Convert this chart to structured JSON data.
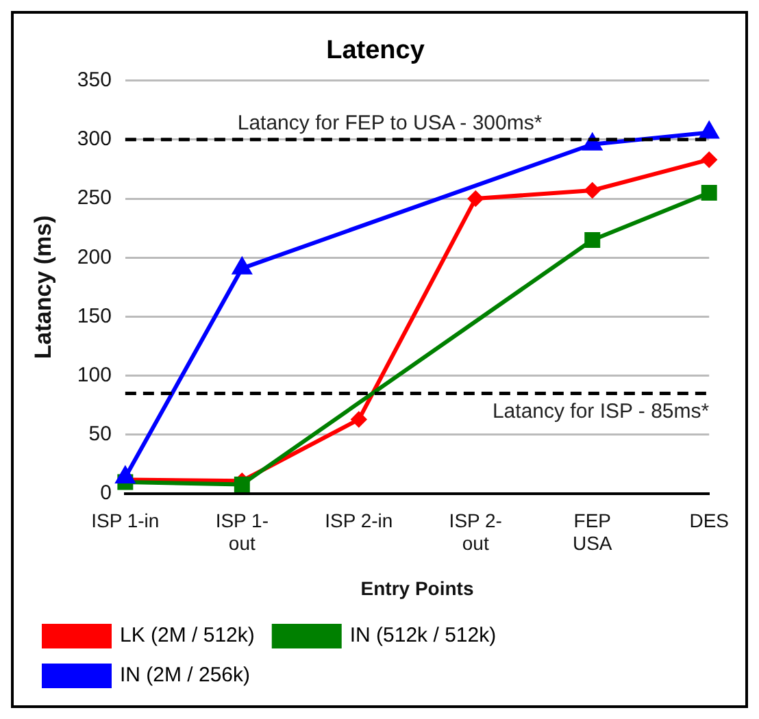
{
  "chart_data": {
    "type": "line",
    "title": "Latency",
    "xlabel": "Entry Points",
    "ylabel": "Latancy (ms)",
    "categories": [
      "ISP 1-in",
      "ISP 1-out",
      "ISP 2-in",
      "ISP 2-out",
      "FEP USA",
      "DES"
    ],
    "series": [
      {
        "name": "LK (2M / 512k)",
        "color": "#ff0000",
        "marker": "diamond",
        "values": [
          12,
          11,
          63,
          250,
          257,
          283
        ]
      },
      {
        "name": "IN (512k / 512k)",
        "color": "#008000",
        "marker": "square",
        "values": [
          10,
          8,
          null,
          null,
          215,
          255
        ]
      },
      {
        "name": "IN (2M / 256k)",
        "color": "#0000ff",
        "marker": "triangle",
        "values": [
          14,
          191,
          null,
          null,
          296,
          306
        ]
      }
    ],
    "ylim": [
      0,
      350
    ],
    "yticks": [
      0,
      50,
      100,
      150,
      200,
      250,
      300,
      350
    ],
    "grid": "y",
    "legend": "bottom",
    "line_style": "solid",
    "ref_lines": [
      {
        "axis": "y",
        "value": 300,
        "label": "Latancy for FEP to USA - 300ms*",
        "color": "#000000",
        "line_style": "dashed"
      },
      {
        "axis": "y",
        "value": 85,
        "label": "Latancy for ISP - 85ms*",
        "color": "#000000",
        "line_style": "dashed"
      }
    ]
  }
}
